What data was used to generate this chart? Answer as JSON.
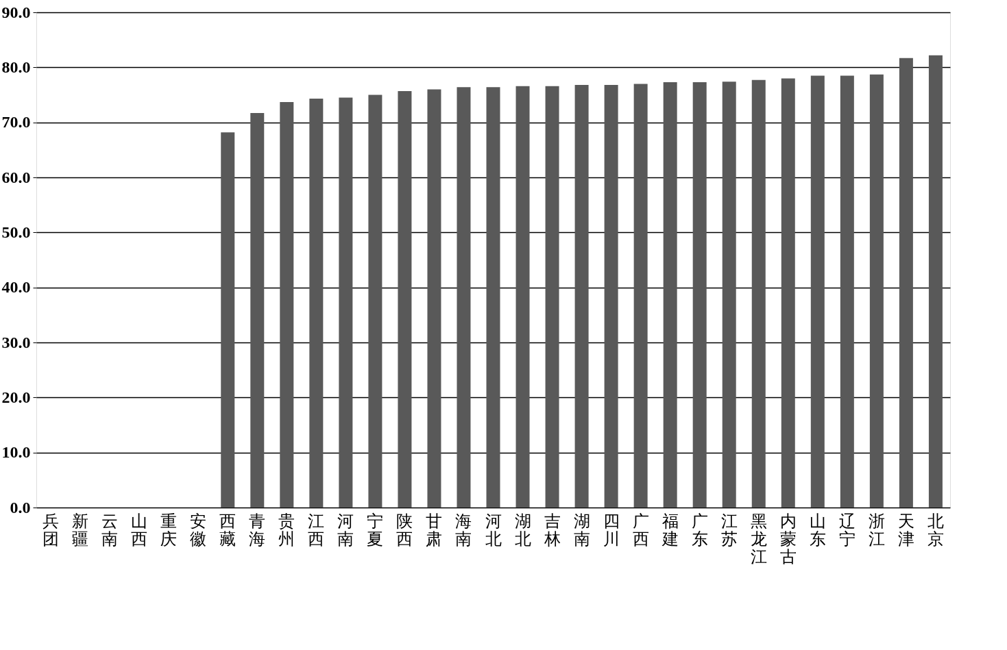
{
  "chart_data": {
    "type": "bar",
    "categories": [
      "兵团",
      "新疆",
      "云南",
      "山西",
      "重庆",
      "安徽",
      "西藏",
      "青海",
      "贵州",
      "江西",
      "河南",
      "宁夏",
      "陕西",
      "甘肃",
      "海南",
      "河北",
      "湖北",
      "吉林",
      "湖南",
      "四川",
      "广西",
      "福建",
      "广东",
      "江苏",
      "黑龙江",
      "内蒙古",
      "山东",
      "辽宁",
      "浙江",
      "天津",
      "北京"
    ],
    "values": [
      null,
      null,
      null,
      null,
      null,
      null,
      68.2,
      71.7,
      73.7,
      74.3,
      74.5,
      75.0,
      75.7,
      76.0,
      76.4,
      76.4,
      76.6,
      76.6,
      76.8,
      76.8,
      77.0,
      77.3,
      77.3,
      77.4,
      77.7,
      78.0,
      78.5,
      78.5,
      78.7,
      81.7,
      82.2
    ],
    "color": "#595959",
    "ylim": [
      0,
      90
    ],
    "yticks": [
      {
        "value": 0,
        "label": "0.0"
      },
      {
        "value": 10,
        "label": "10.0"
      },
      {
        "value": 20,
        "label": "20.0"
      },
      {
        "value": 30,
        "label": "30.0"
      },
      {
        "value": 40,
        "label": "40.0"
      },
      {
        "value": 50,
        "label": "50.0"
      },
      {
        "value": 60,
        "label": "60.0"
      },
      {
        "value": 70,
        "label": "70.0"
      },
      {
        "value": 80,
        "label": "80.0"
      },
      {
        "value": 90,
        "label": "90.0"
      }
    ],
    "grid": "y"
  }
}
